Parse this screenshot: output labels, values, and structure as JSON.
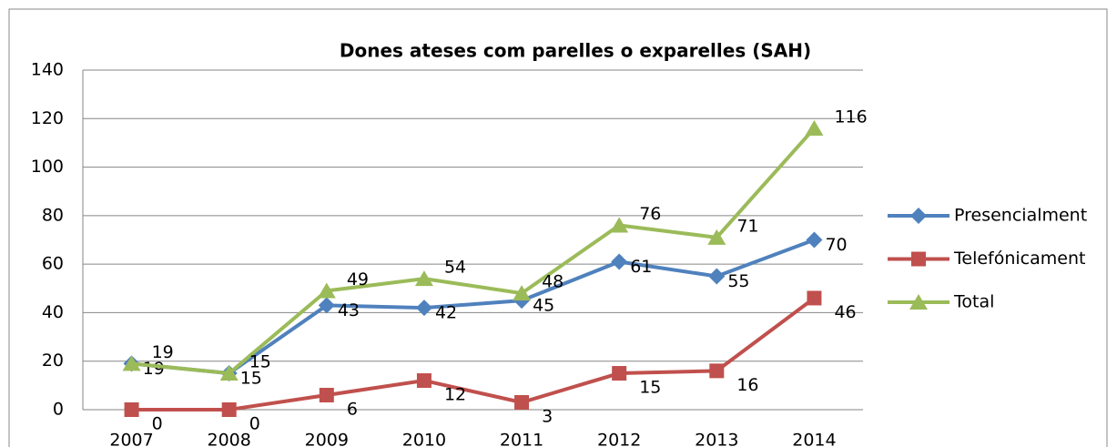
{
  "chart_data": {
    "type": "line",
    "title": "Dones ateses com parelles o exparelles (SAH)",
    "categories": [
      "2007",
      "2008",
      "2009",
      "2010",
      "2011",
      "2012",
      "2013",
      "2014"
    ],
    "series": [
      {
        "name": "Presencialment",
        "color": "#4f81bd",
        "marker": "diamond",
        "values": [
          19,
          15,
          43,
          42,
          45,
          61,
          55,
          70
        ]
      },
      {
        "name": "Telefónicament",
        "color": "#c0504d",
        "marker": "square",
        "values": [
          0,
          0,
          6,
          12,
          3,
          15,
          16,
          46
        ]
      },
      {
        "name": "Total",
        "color": "#9bbb59",
        "marker": "triangle",
        "values": [
          19,
          15,
          49,
          54,
          48,
          76,
          71,
          116
        ]
      }
    ],
    "ylim": [
      0,
      140
    ],
    "yticks": [
      0,
      20,
      40,
      60,
      80,
      100,
      120,
      140
    ],
    "grid": true,
    "legend": "right"
  }
}
